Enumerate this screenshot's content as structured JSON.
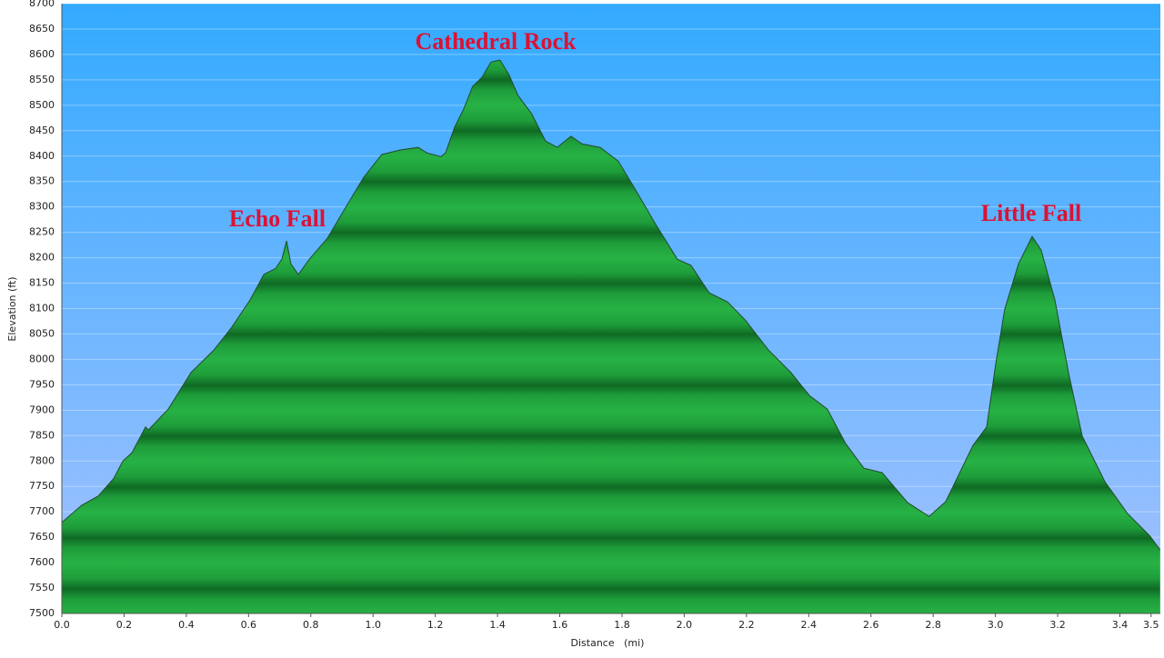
{
  "chart_data": {
    "type": "area",
    "xlabel": "Distance   (mi)",
    "ylabel": "Elevation (ft)",
    "annotations": [
      "Echo Fall",
      "Cathedral Rock",
      "Little Fall"
    ],
    "annotation_color": "#dd1133",
    "color": "#1faa3c",
    "grid": true,
    "xlim": [
      0,
      3.53
    ],
    "ylim": [
      7500,
      8700
    ],
    "xticks": [
      {
        "value": 0,
        "label": "0.0"
      },
      0.2,
      0.4,
      0.6,
      0.8,
      {
        "value": 1,
        "label": "1.0"
      },
      1.2,
      1.4,
      1.6,
      1.8,
      {
        "value": 2,
        "label": "2.0"
      },
      2.2,
      2.4,
      2.6,
      2.8,
      {
        "value": 3,
        "label": "3.0"
      },
      3.2,
      3.4,
      3.5
    ],
    "yticks": [
      7500,
      7550,
      7600,
      7650,
      7700,
      7750,
      7800,
      7850,
      7900,
      7950,
      8000,
      8050,
      8100,
      8150,
      8200,
      8250,
      8300,
      8350,
      8400,
      8450,
      8500,
      8550,
      8600,
      8650,
      8700
    ],
    "x": [
      0,
      0.064,
      0.117,
      0.167,
      0.196,
      0.225,
      0.269,
      0.278,
      0.342,
      0.415,
      0.488,
      0.546,
      0.605,
      0.649,
      0.687,
      0.707,
      0.722,
      0.736,
      0.76,
      0.795,
      0.853,
      0.912,
      0.97,
      1.028,
      1.087,
      1.145,
      1.174,
      1.218,
      1.233,
      1.262,
      1.291,
      1.32,
      1.35,
      1.379,
      1.408,
      1.437,
      1.466,
      1.51,
      1.554,
      1.592,
      1.636,
      1.671,
      1.73,
      1.788,
      1.846,
      1.905,
      1.978,
      2.022,
      2.08,
      2.139,
      2.197,
      2.27,
      2.343,
      2.402,
      2.46,
      2.519,
      2.577,
      2.636,
      2.718,
      2.787,
      2.84,
      2.928,
      2.972,
      3.001,
      3.03,
      3.074,
      3.118,
      3.147,
      3.191,
      3.235,
      3.279,
      3.352,
      3.424,
      3.497,
      3.529
    ],
    "values": [
      7679,
      7713,
      7731,
      7766,
      7800,
      7816,
      7867,
      7861,
      7902,
      7974,
      8018,
      8063,
      8117,
      8167,
      8179,
      8197,
      8233,
      8188,
      8167,
      8197,
      8238,
      8299,
      8358,
      8403,
      8412,
      8417,
      8406,
      8399,
      8406,
      8457,
      8492,
      8537,
      8555,
      8585,
      8589,
      8560,
      8519,
      8483,
      8430,
      8417,
      8439,
      8424,
      8417,
      8390,
      8331,
      8269,
      8197,
      8185,
      8131,
      8113,
      8077,
      8019,
      7974,
      7929,
      7902,
      7834,
      7786,
      7777,
      7718,
      7691,
      7720,
      7831,
      7867,
      7992,
      8099,
      8188,
      8242,
      8215,
      8117,
      7974,
      7849,
      7759,
      7697,
      7652,
      7625
    ]
  }
}
